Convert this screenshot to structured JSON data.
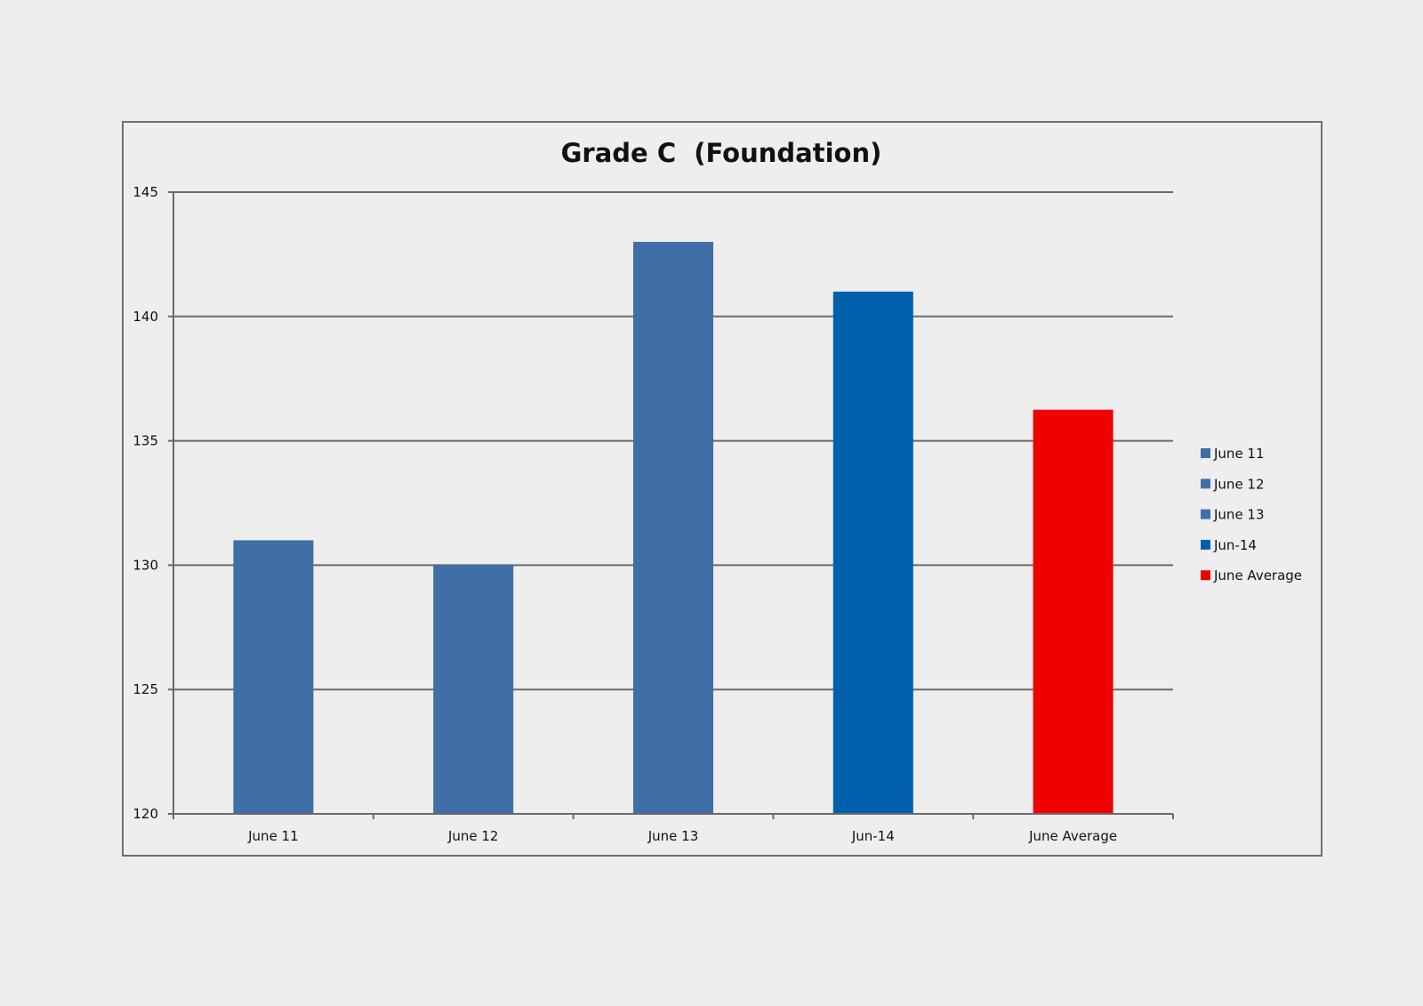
{
  "chart_data": {
    "type": "bar",
    "title": "Grade C  (Foundation)",
    "xlabel": "",
    "ylabel": "",
    "ylim": [
      120,
      145
    ],
    "yticks": [
      120,
      125,
      130,
      135,
      140,
      145
    ],
    "grid": true,
    "legend_position": "right",
    "categories": [
      "June 11",
      "June 12",
      "June 13",
      "Jun-14",
      "June Average"
    ],
    "values": [
      131,
      130,
      143,
      141,
      136.25
    ],
    "colors": [
      "#406ea6",
      "#406ea6",
      "#406ea6",
      "#0060ae",
      "#f00000"
    ],
    "legend": [
      {
        "label": "June 11",
        "color": "#406ea6"
      },
      {
        "label": "June 12",
        "color": "#406ea6"
      },
      {
        "label": "June 13",
        "color": "#406ea6"
      },
      {
        "label": "Jun-14",
        "color": "#0060ae"
      },
      {
        "label": "June Average",
        "color": "#f00000"
      }
    ]
  }
}
